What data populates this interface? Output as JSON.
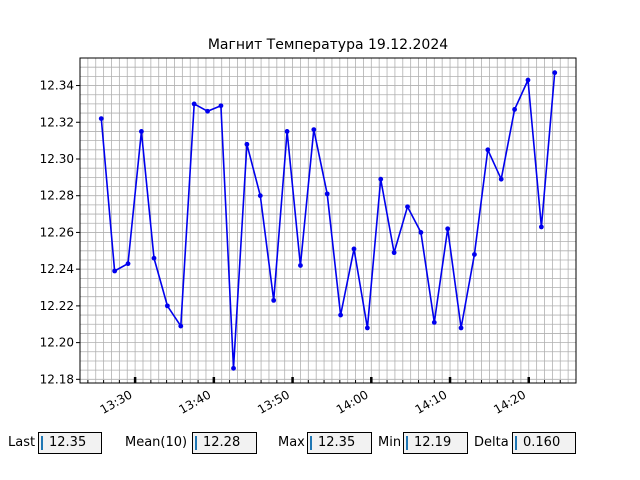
{
  "chart_data": {
    "type": "line",
    "title": "Магнит Температура 19.12.2024",
    "xlabel": "",
    "ylabel": "",
    "ylim": [
      12.178,
      12.355
    ],
    "xlim_minutes": [
      803,
      866
    ],
    "x_ticks": [
      {
        "label": "13:30",
        "minute": 810
      },
      {
        "label": "13:40",
        "minute": 820
      },
      {
        "label": "13:50",
        "minute": 830
      },
      {
        "label": "14:00",
        "minute": 840
      },
      {
        "label": "14:10",
        "minute": 850
      },
      {
        "label": "14:20",
        "minute": 860
      }
    ],
    "y_ticks": [
      "12.18",
      "12.20",
      "12.22",
      "12.24",
      "12.26",
      "12.28",
      "12.30",
      "12.32",
      "12.34"
    ],
    "y_tick_values": [
      12.18,
      12.2,
      12.22,
      12.24,
      12.26,
      12.28,
      12.3,
      12.32,
      12.34
    ],
    "grid": true,
    "series": [
      {
        "color": "#0000ee",
        "x_minutes": [
          805.7,
          807.4,
          809.1,
          810.8,
          812.4,
          814.1,
          815.8,
          817.5,
          819.2,
          820.9,
          822.5,
          824.2,
          825.9,
          827.6,
          829.3,
          831.0,
          832.7,
          834.4,
          836.1,
          837.8,
          839.5,
          841.2,
          842.9,
          844.6,
          846.3,
          848.0,
          849.7,
          851.4,
          853.1,
          854.8,
          856.5,
          858.2,
          859.9,
          861.6,
          863.3
        ],
        "values": [
          12.322,
          12.239,
          12.243,
          12.315,
          12.246,
          12.22,
          12.209,
          12.33,
          12.326,
          12.329,
          12.186,
          12.308,
          12.28,
          12.223,
          12.315,
          12.242,
          12.316,
          12.281,
          12.215,
          12.251,
          12.208,
          12.289,
          12.249,
          12.274,
          12.26,
          12.211,
          12.262,
          12.208,
          12.248,
          12.305,
          12.289,
          12.327,
          12.343,
          12.263,
          12.347
        ]
      }
    ]
  },
  "stats": [
    {
      "label": "Last",
      "value": "12.35"
    },
    {
      "label": "Mean(10)",
      "value": "12.28"
    },
    {
      "label": "Max",
      "value": "12.35"
    },
    {
      "label": "Min",
      "value": "12.19"
    },
    {
      "label": "Delta",
      "value": "0.160"
    }
  ]
}
